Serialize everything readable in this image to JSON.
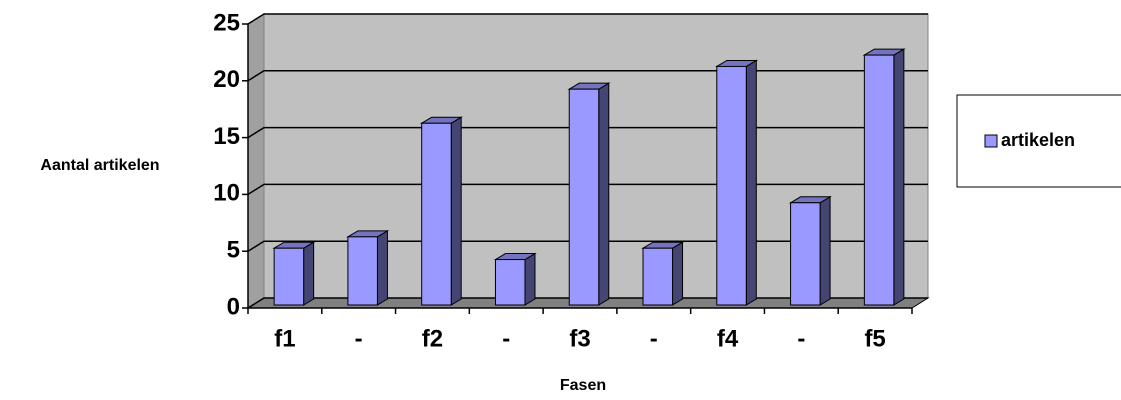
{
  "chart_data": {
    "type": "bar",
    "categories": [
      "f1",
      "-",
      "f2",
      "-",
      "f3",
      "-",
      "f4",
      "-",
      "f5"
    ],
    "series": [
      {
        "name": "artikelen",
        "color": "#9999ff",
        "values": [
          5,
          6,
          16,
          4,
          19,
          5,
          21,
          9,
          22
        ]
      }
    ],
    "ylim": [
      0,
      25
    ],
    "yticks": [
      0,
      5,
      10,
      15,
      20,
      25
    ],
    "ylabel": "Aantal artikelen",
    "xlabel": "Fasen",
    "grid": true,
    "legend": "right"
  }
}
